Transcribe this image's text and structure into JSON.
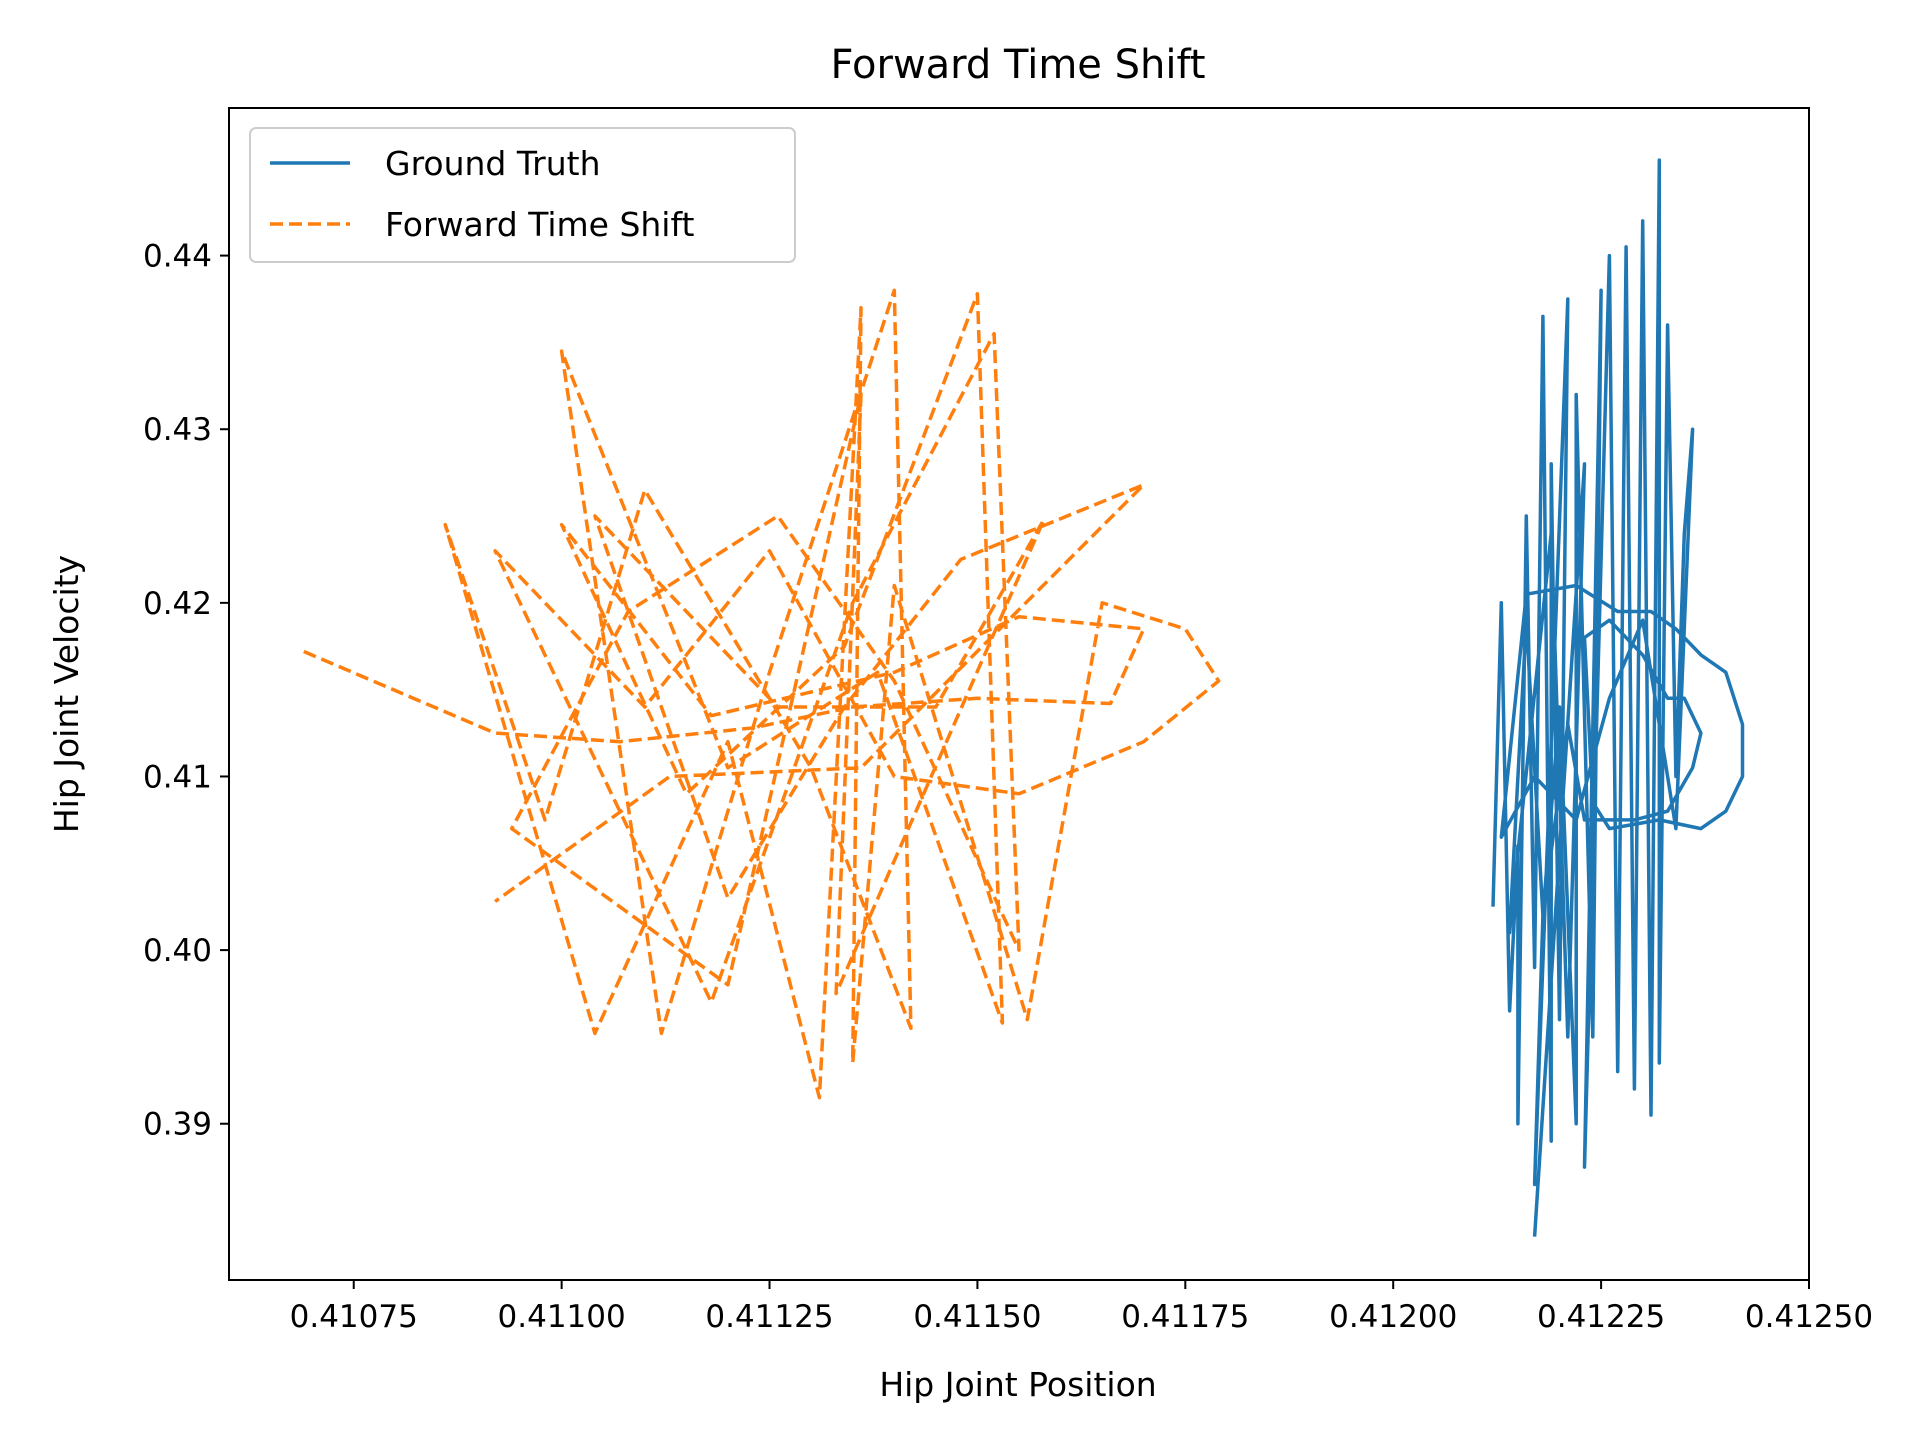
{
  "chart_data": {
    "type": "line",
    "title": "Forward Time Shift",
    "xlabel": "Hip Joint Position",
    "ylabel": "Hip Joint Velocity",
    "xlim": [
      0.4106,
      0.4125
    ],
    "ylim": [
      0.381,
      0.4485
    ],
    "xticks": [
      0.41075,
      0.411,
      0.41125,
      0.4115,
      0.41175,
      0.412,
      0.41225,
      0.4125
    ],
    "xtick_labels": [
      "0.41075",
      "0.41100",
      "0.41125",
      "0.41150",
      "0.41175",
      "0.41200",
      "0.41225",
      "0.41250"
    ],
    "yticks": [
      0.39,
      0.4,
      0.41,
      0.42,
      0.43,
      0.44
    ],
    "ytick_labels": [
      "0.39",
      "0.40",
      "0.41",
      "0.42",
      "0.43",
      "0.44"
    ],
    "grid": false,
    "legend_position": "upper-left",
    "series": [
      {
        "name": "Ground Truth",
        "color": "#1f77b4",
        "style": "solid",
        "points": [
          [
            0.41212,
            0.4025
          ],
          [
            0.41213,
            0.42
          ],
          [
            0.41214,
            0.3965
          ],
          [
            0.41215,
            0.406
          ],
          [
            0.41215,
            0.39
          ],
          [
            0.41216,
            0.425
          ],
          [
            0.41217,
            0.399
          ],
          [
            0.41218,
            0.4365
          ],
          [
            0.41219,
            0.389
          ],
          [
            0.41219,
            0.428
          ],
          [
            0.4122,
            0.396
          ],
          [
            0.41221,
            0.4375
          ],
          [
            0.41217,
            0.3865
          ],
          [
            0.41218,
            0.402
          ],
          [
            0.4122,
            0.414
          ],
          [
            0.41222,
            0.39
          ],
          [
            0.41222,
            0.432
          ],
          [
            0.41224,
            0.395
          ],
          [
            0.41225,
            0.438
          ],
          [
            0.41223,
            0.3875
          ],
          [
            0.41226,
            0.44
          ],
          [
            0.41227,
            0.393
          ],
          [
            0.41228,
            0.4405
          ],
          [
            0.41229,
            0.392
          ],
          [
            0.4123,
            0.442
          ],
          [
            0.41231,
            0.3905
          ],
          [
            0.41232,
            0.4455
          ],
          [
            0.41232,
            0.3935
          ],
          [
            0.41233,
            0.436
          ],
          [
            0.41234,
            0.41
          ],
          [
            0.41235,
            0.424
          ],
          [
            0.41236,
            0.43
          ],
          [
            0.41234,
            0.407
          ],
          [
            0.4123,
            0.419
          ],
          [
            0.41226,
            0.4145
          ],
          [
            0.41222,
            0.4075
          ],
          [
            0.41217,
            0.41
          ],
          [
            0.41213,
            0.4065
          ],
          [
            0.41216,
            0.4205
          ],
          [
            0.41222,
            0.421
          ],
          [
            0.41227,
            0.4195
          ],
          [
            0.41231,
            0.4195
          ],
          [
            0.41234,
            0.4185
          ],
          [
            0.41237,
            0.417
          ],
          [
            0.4124,
            0.416
          ],
          [
            0.41242,
            0.413
          ],
          [
            0.41242,
            0.41
          ],
          [
            0.4124,
            0.408
          ],
          [
            0.41237,
            0.407
          ],
          [
            0.41232,
            0.4075
          ],
          [
            0.41226,
            0.407
          ],
          [
            0.41224,
            0.4085
          ],
          [
            0.41223,
            0.418
          ],
          [
            0.41226,
            0.419
          ],
          [
            0.4123,
            0.417
          ],
          [
            0.41233,
            0.4145
          ],
          [
            0.41235,
            0.4145
          ],
          [
            0.41237,
            0.4125
          ],
          [
            0.41236,
            0.4105
          ],
          [
            0.41233,
            0.408
          ],
          [
            0.41229,
            0.4075
          ],
          [
            0.41223,
            0.4075
          ],
          [
            0.41221,
            0.413
          ],
          [
            0.41218,
            0.402
          ],
          [
            0.41216,
            0.419
          ],
          [
            0.41214,
            0.401
          ],
          [
            0.41219,
            0.424
          ],
          [
            0.41221,
            0.395
          ],
          [
            0.41223,
            0.428
          ],
          [
            0.41217,
            0.3835
          ]
        ]
      },
      {
        "name": "Forward Time Shift",
        "color": "#ff7f0e",
        "style": "dashed",
        "points": [
          [
            0.41069,
            0.4172
          ],
          [
            0.41092,
            0.4125
          ],
          [
            0.41107,
            0.412
          ],
          [
            0.41123,
            0.4128
          ],
          [
            0.41135,
            0.414
          ],
          [
            0.4115,
            0.4145
          ],
          [
            0.41166,
            0.4142
          ],
          [
            0.4117,
            0.4185
          ],
          [
            0.41155,
            0.4192
          ],
          [
            0.4114,
            0.416
          ],
          [
            0.41118,
            0.4135
          ],
          [
            0.411,
            0.4245
          ],
          [
            0.41115,
            0.409
          ],
          [
            0.41134,
            0.4175
          ],
          [
            0.4115,
            0.4378
          ],
          [
            0.41153,
            0.3958
          ],
          [
            0.41138,
            0.416
          ],
          [
            0.4112,
            0.4105
          ],
          [
            0.411,
            0.4345
          ],
          [
            0.41112,
            0.3952
          ],
          [
            0.41125,
            0.416
          ],
          [
            0.4114,
            0.438
          ],
          [
            0.41142,
            0.3955
          ],
          [
            0.4113,
            0.4105
          ],
          [
            0.4111,
            0.4265
          ],
          [
            0.41098,
            0.4075
          ],
          [
            0.41086,
            0.4245
          ],
          [
            0.41104,
            0.3952
          ],
          [
            0.4112,
            0.412
          ],
          [
            0.41131,
            0.3915
          ],
          [
            0.41136,
            0.437
          ],
          [
            0.41135,
            0.3935
          ],
          [
            0.4114,
            0.421
          ],
          [
            0.41156,
            0.396
          ],
          [
            0.41165,
            0.42
          ],
          [
            0.41175,
            0.4185
          ],
          [
            0.41179,
            0.4155
          ],
          [
            0.4117,
            0.412
          ],
          [
            0.41155,
            0.409
          ],
          [
            0.4114,
            0.41
          ],
          [
            0.41125,
            0.423
          ],
          [
            0.4111,
            0.414
          ],
          [
            0.41092,
            0.423
          ],
          [
            0.41118,
            0.397
          ],
          [
            0.41135,
            0.42
          ],
          [
            0.41152,
            0.4355
          ],
          [
            0.41155,
            0.4
          ],
          [
            0.4114,
            0.4155
          ],
          [
            0.41126,
            0.425
          ],
          [
            0.41108,
            0.4195
          ],
          [
            0.41094,
            0.407
          ],
          [
            0.4112,
            0.398
          ],
          [
            0.41136,
            0.432
          ],
          [
            0.41133,
            0.3975
          ],
          [
            0.41158,
            0.4248
          ],
          [
            0.41145,
            0.414
          ],
          [
            0.41126,
            0.414
          ],
          [
            0.41104,
            0.425
          ],
          [
            0.4112,
            0.403
          ],
          [
            0.41134,
            0.414
          ],
          [
            0.41148,
            0.4225
          ],
          [
            0.4117,
            0.4268
          ],
          [
            0.41136,
            0.4105
          ],
          [
            0.41113,
            0.41
          ],
          [
            0.41092,
            0.4028
          ]
        ]
      }
    ]
  }
}
